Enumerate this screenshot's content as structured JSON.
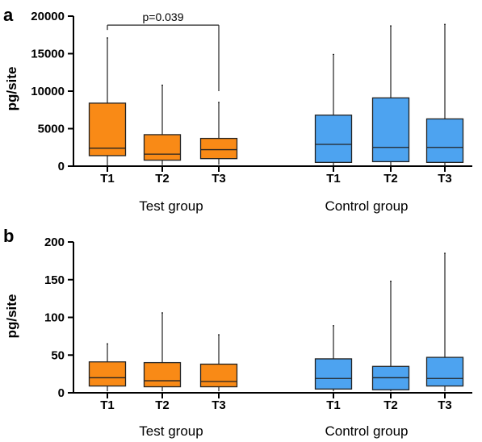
{
  "chart_data": [
    {
      "type": "box",
      "panel": "a",
      "ylabel": "pg/site",
      "ylim": [
        0,
        20000
      ],
      "yticks": [
        0,
        5000,
        10000,
        15000,
        20000
      ],
      "grid": false,
      "groups": [
        {
          "label": "Test group",
          "color": "#F98A16",
          "boxes": [
            {
              "label": "T1",
              "min": 100,
              "q1": 1400,
              "median": 2400,
              "q3": 8400,
              "max": 17100
            },
            {
              "label": "T2",
              "min": 150,
              "q1": 800,
              "median": 1600,
              "q3": 4200,
              "max": 10800
            },
            {
              "label": "T3",
              "min": 200,
              "q1": 1000,
              "median": 2200,
              "q3": 3700,
              "max": 8500
            }
          ]
        },
        {
          "label": "Control group",
          "color": "#4DA3F0",
          "boxes": [
            {
              "label": "T1",
              "min": 100,
              "q1": 500,
              "median": 2900,
              "q3": 6800,
              "max": 14900
            },
            {
              "label": "T2",
              "min": 100,
              "q1": 600,
              "median": 2500,
              "q3": 9100,
              "max": 18700
            },
            {
              "label": "T3",
              "min": 100,
              "q1": 500,
              "median": 2500,
              "q3": 6300,
              "max": 18900
            }
          ]
        }
      ],
      "annotations": [
        {
          "text": "p=0.039",
          "from": "T1",
          "to": "T3",
          "group": "Test group",
          "level": 18800,
          "right_drop_to": 10000
        }
      ]
    },
    {
      "type": "box",
      "panel": "b",
      "ylabel": "pg/site",
      "ylim": [
        0,
        200
      ],
      "yticks": [
        0,
        50,
        100,
        150,
        200
      ],
      "grid": false,
      "groups": [
        {
          "label": "Test group",
          "color": "#F98A16",
          "boxes": [
            {
              "label": "T1",
              "min": 2,
              "q1": 9,
              "median": 20,
              "q3": 41,
              "max": 65
            },
            {
              "label": "T2",
              "min": 2,
              "q1": 8,
              "median": 16,
              "q3": 40,
              "max": 106
            },
            {
              "label": "T3",
              "min": 2,
              "q1": 8,
              "median": 15,
              "q3": 38,
              "max": 77
            }
          ]
        },
        {
          "label": "Control group",
          "color": "#4DA3F0",
          "boxes": [
            {
              "label": "T1",
              "min": 2,
              "q1": 5,
              "median": 19,
              "q3": 45,
              "max": 89
            },
            {
              "label": "T2",
              "min": 2,
              "q1": 4,
              "median": 20,
              "q3": 35,
              "max": 148
            },
            {
              "label": "T3",
              "min": 2,
              "q1": 9,
              "median": 19,
              "q3": 47,
              "max": 185
            }
          ]
        }
      ],
      "annotations": []
    }
  ]
}
